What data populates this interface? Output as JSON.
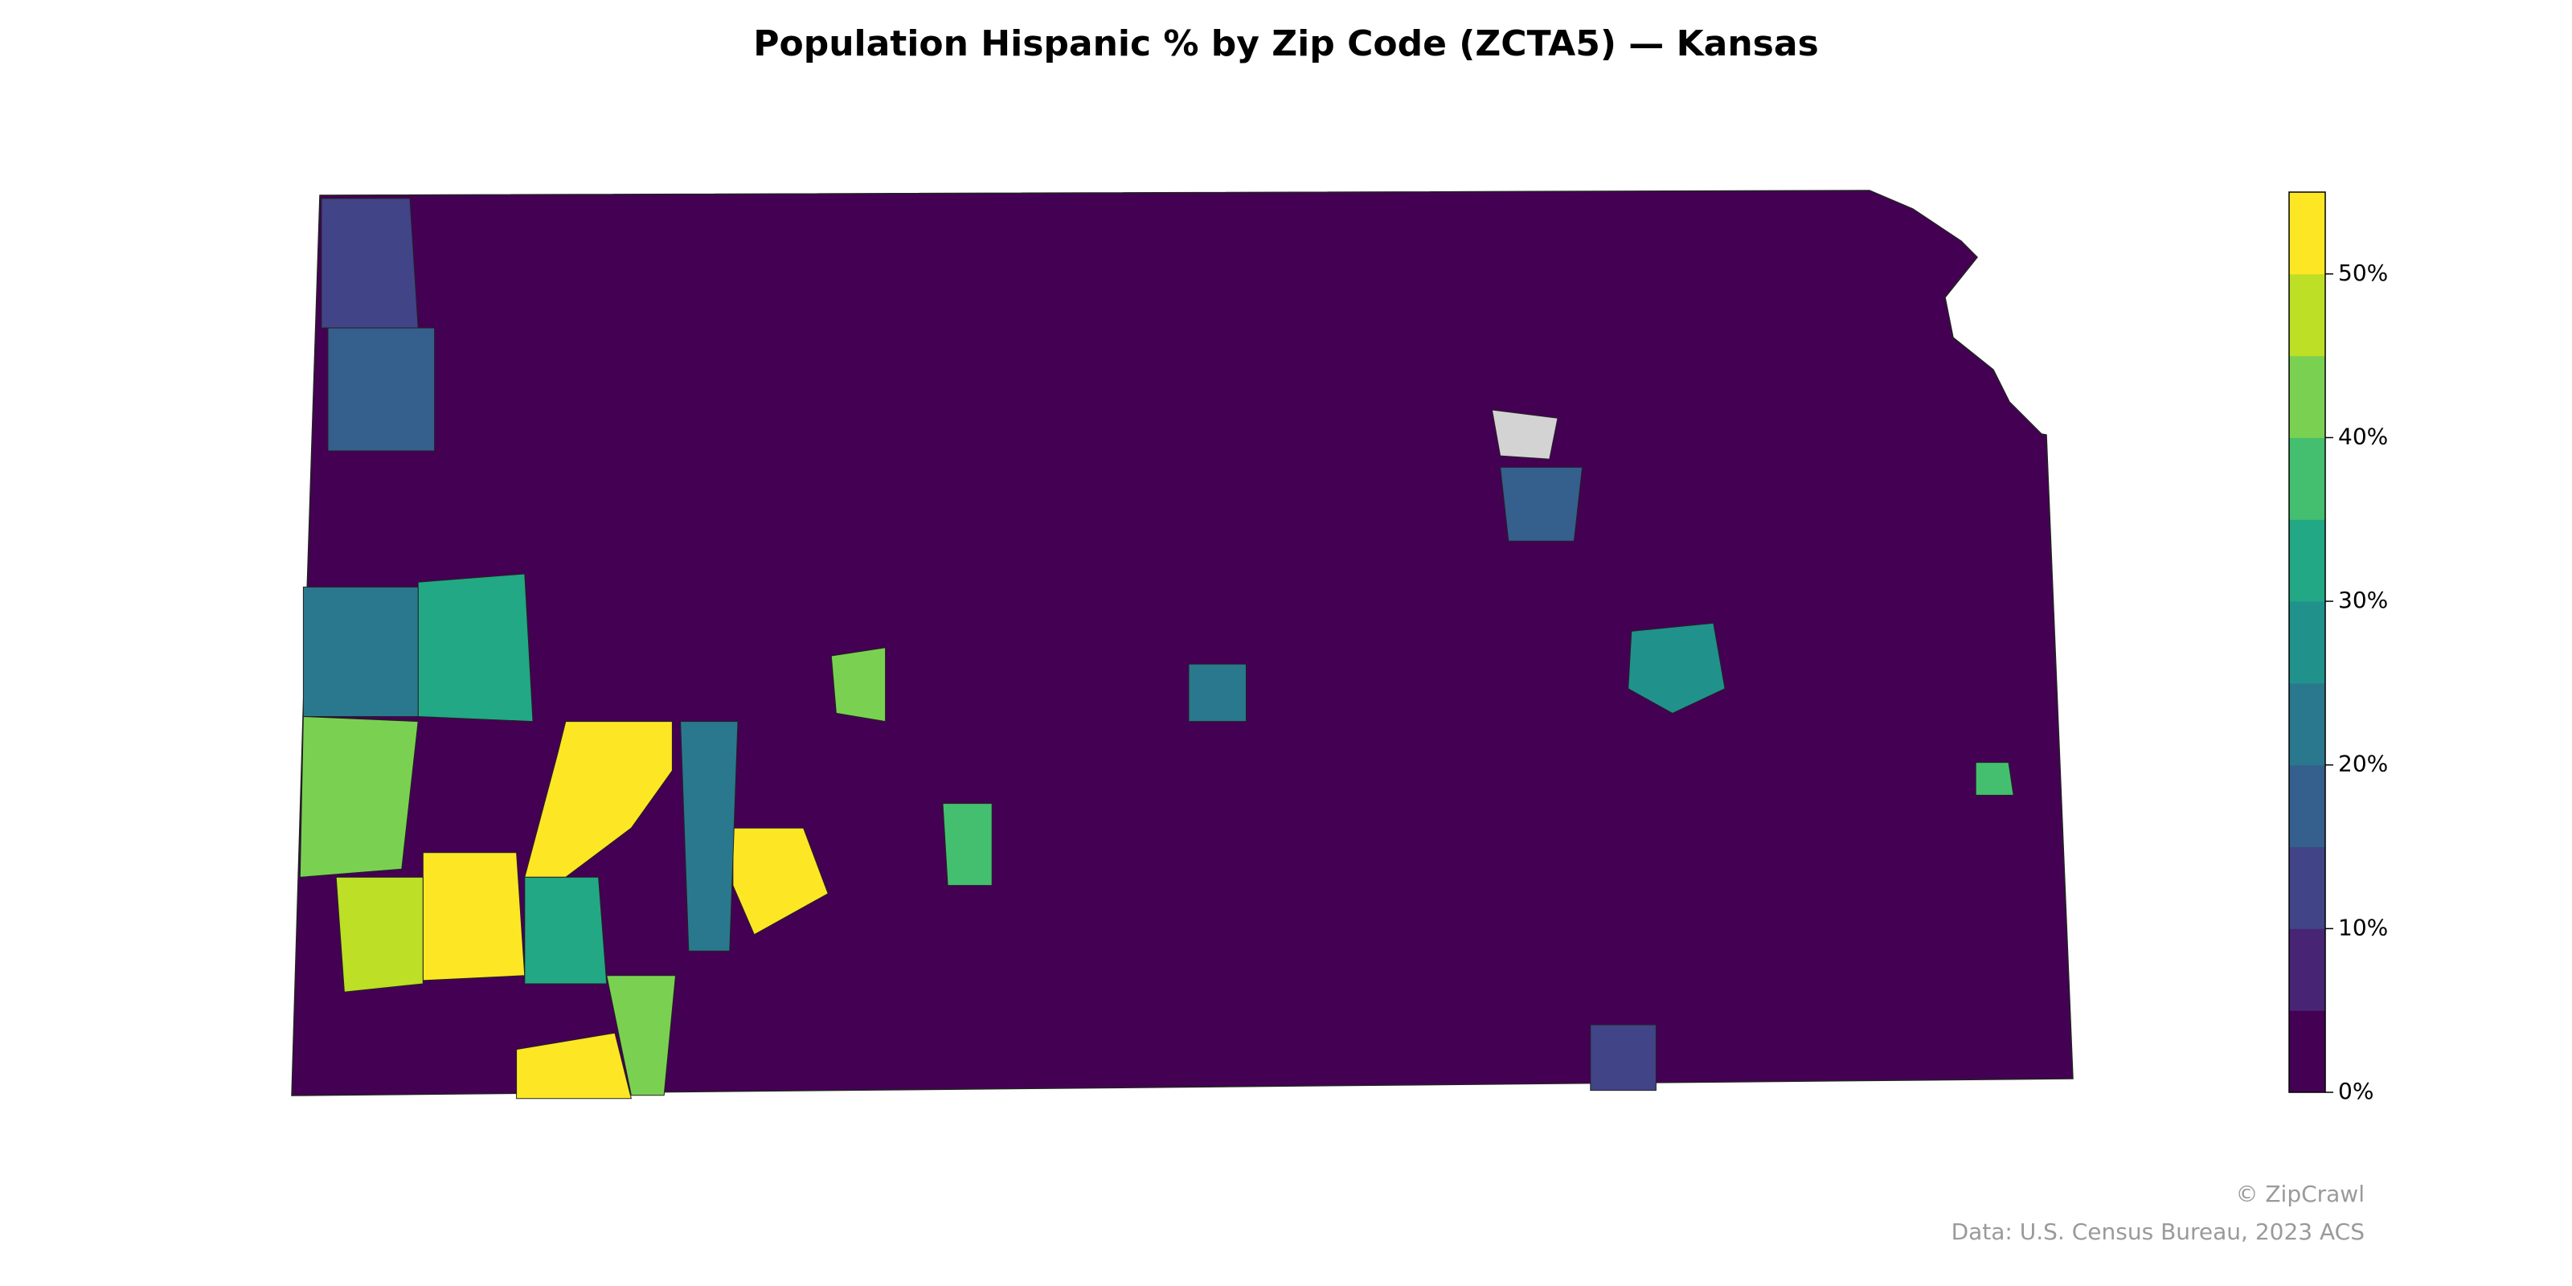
{
  "chart_data": {
    "type": "choropleth",
    "title": "Population Hispanic % by Zip Code (ZCTA5) — Kansas",
    "colors": [
      "#440154",
      "#482475",
      "#414487",
      "#355f8d",
      "#2a788e",
      "#21918c",
      "#22a884",
      "#44bf70",
      "#7ad151",
      "#bddf26",
      "#fde725"
    ],
    "missing_color": "#d3d3d3",
    "ylim": [
      0,
      55
    ],
    "yticks": [
      {
        "value": 0,
        "label": "0%"
      },
      {
        "value": 10,
        "label": "10%"
      },
      {
        "value": 20,
        "label": "20%"
      },
      {
        "value": 30,
        "label": "30%"
      },
      {
        "value": 40,
        "label": "40%"
      },
      {
        "value": 50,
        "label": "50%"
      }
    ],
    "values": [
      54,
      53,
      55,
      54,
      47,
      43,
      30,
      20,
      27,
      42,
      38,
      17,
      24,
      null,
      10,
      15,
      43,
      30,
      22,
      14,
      35
    ],
    "credit": "© ZipCrawl",
    "source": "Data: U.S. Census Bureau, 2023 ACS"
  }
}
